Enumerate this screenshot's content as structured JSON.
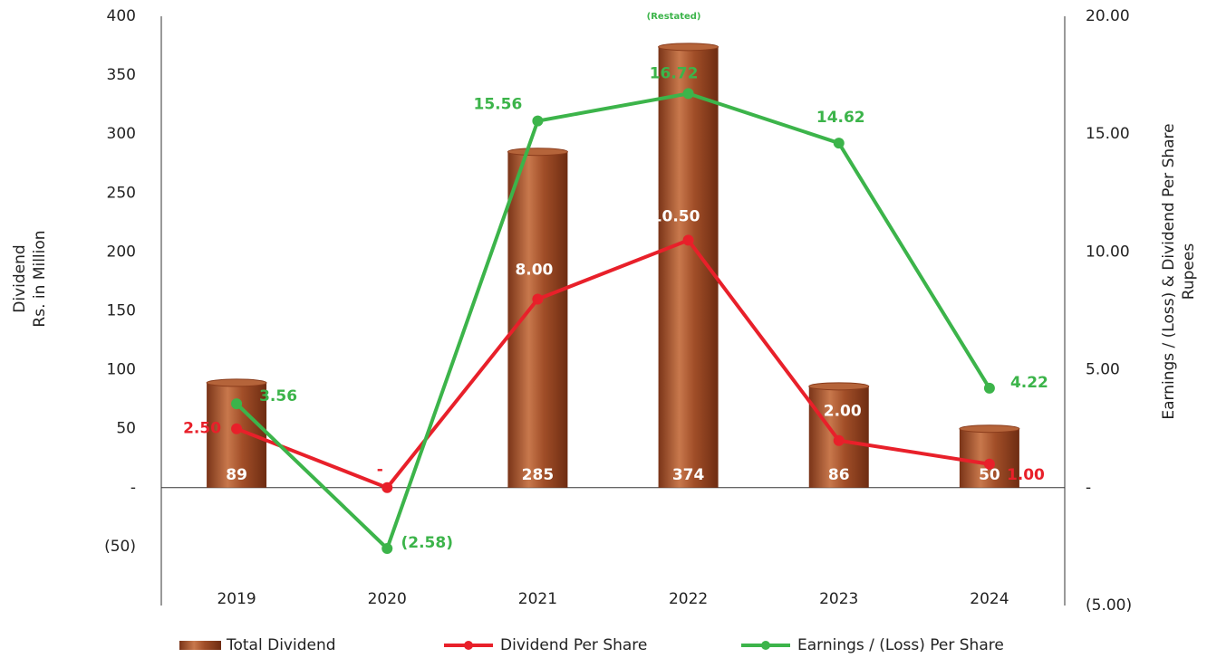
{
  "chart_data": {
    "type": "bar-line",
    "categories": [
      "2019",
      "2020",
      "2021",
      "2022",
      "2023",
      "2024"
    ],
    "ylabel": [
      "Dividend",
      "Rs. in Million"
    ],
    "y2label": [
      "Earnings / (Loss) & Dividend Per Share",
      "Rupees"
    ],
    "annotation": "(Restated)",
    "ylim": [
      -100,
      400
    ],
    "yticks": [
      {
        "value": -50,
        "label": "(50)"
      },
      {
        "value": 0,
        "label": "-"
      },
      50,
      100,
      150,
      200,
      250,
      300,
      350,
      400
    ],
    "y2lim": [
      -5,
      20
    ],
    "y2ticks": [
      {
        "value": -5,
        "label": "(5.00)"
      },
      {
        "value": 0,
        "label": "-"
      },
      {
        "value": 5,
        "label": "5.00"
      },
      {
        "value": 10,
        "label": "10.00"
      },
      {
        "value": 15,
        "label": "15.00"
      },
      {
        "value": 20,
        "label": "20.00"
      }
    ],
    "series": [
      {
        "name": "Total Dividend",
        "type": "bar",
        "color": "#a0522d",
        "values": [
          89,
          null,
          285,
          374,
          86,
          50
        ]
      },
      {
        "name": "Dividend Per Share",
        "type": "line",
        "axis": "y2",
        "color": "#e8202a",
        "values": [
          2.5,
          0,
          8,
          10.5,
          2,
          1
        ],
        "value_labels": [
          "2.50",
          "-",
          "8.00",
          "10.50",
          "2.00",
          "1.00"
        ]
      },
      {
        "name": "Earnings / (Loss) Per Share",
        "type": "line",
        "axis": "y2",
        "color": "#3cb44a",
        "values": [
          3.56,
          -2.58,
          15.56,
          16.72,
          14.62,
          4.22
        ],
        "value_labels": [
          "3.56",
          "(2.58)",
          "15.56",
          "16.72",
          "14.62",
          "4.22"
        ]
      }
    ]
  }
}
